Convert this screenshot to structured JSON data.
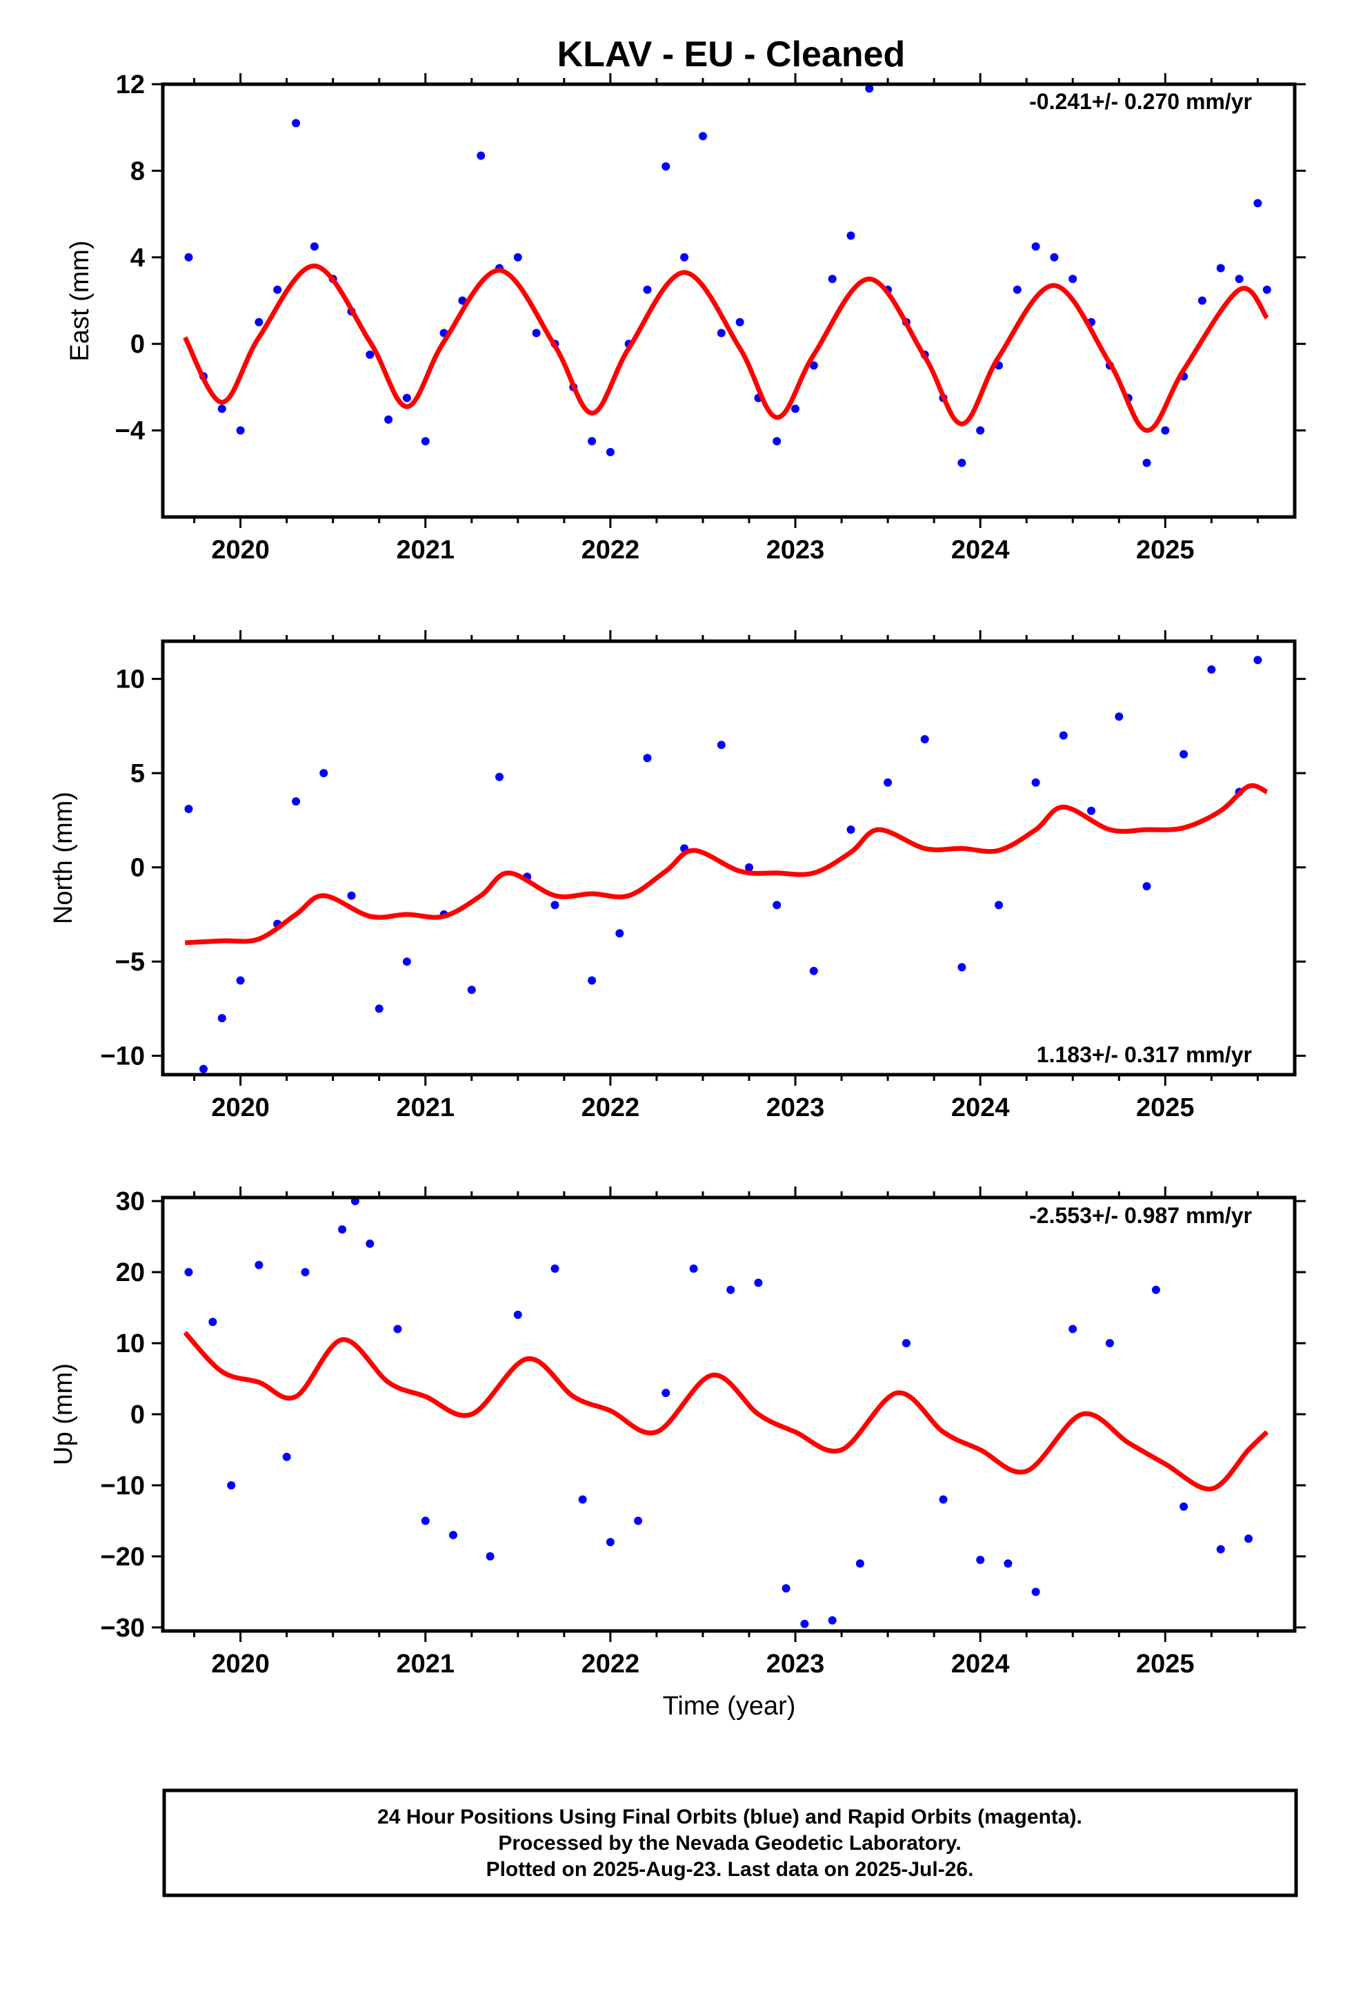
{
  "title": "KLAV  - EU - Cleaned",
  "xlabel": "Time (year)",
  "footer": [
    "24 Hour Positions Using Final Orbits (blue) and Rapid Orbits (magenta).",
    "Processed by the Nevada Geodetic Laboratory.",
    "Plotted on 2025-Aug-23. Last data on 2025-Jul-26."
  ],
  "colors": {
    "points": "#0000ff",
    "fit": "#ff0000",
    "frame": "#000000"
  },
  "chart_data": [
    {
      "type": "scatter",
      "component": "East",
      "ylabel": "East (mm)",
      "rate": "-0.241+/- 0.270 mm/yr",
      "xlim": [
        2019.58,
        2025.7
      ],
      "ylim": [
        -8,
        12
      ],
      "yticks": [
        -4,
        0,
        4,
        8,
        12
      ],
      "xticks": [
        2020,
        2021,
        2022,
        2023,
        2024,
        2025
      ],
      "grid": false,
      "series": [
        {
          "name": "",
          "kind": "fit",
          "x": [
            2019.7,
            2019.9,
            2020.1,
            2020.4,
            2020.7,
            2020.9,
            2021.1,
            2021.4,
            2021.7,
            2021.9,
            2022.1,
            2022.4,
            2022.7,
            2022.9,
            2023.1,
            2023.4,
            2023.7,
            2023.9,
            2024.1,
            2024.4,
            2024.7,
            2024.9,
            2025.1,
            2025.4,
            2025.55
          ],
          "y": [
            0.3,
            -2.7,
            0.3,
            3.6,
            0.1,
            -2.9,
            0.1,
            3.4,
            -0.1,
            -3.2,
            -0.2,
            3.3,
            -0.2,
            -3.4,
            -0.5,
            3.0,
            -0.6,
            -3.7,
            -0.6,
            2.7,
            -0.9,
            -4.0,
            -1.2,
            2.5,
            1.2
          ]
        },
        {
          "name": "",
          "kind": "points",
          "x": [
            2019.72,
            2019.8,
            2019.9,
            2020.0,
            2020.1,
            2020.2,
            2020.3,
            2020.4,
            2020.5,
            2020.6,
            2020.7,
            2020.8,
            2020.9,
            2021.0,
            2021.1,
            2021.2,
            2021.3,
            2021.4,
            2021.5,
            2021.6,
            2021.7,
            2021.8,
            2021.9,
            2022.0,
            2022.1,
            2022.2,
            2022.3,
            2022.4,
            2022.5,
            2022.6,
            2022.7,
            2022.8,
            2022.9,
            2023.0,
            2023.1,
            2023.2,
            2023.3,
            2023.4,
            2023.5,
            2023.6,
            2023.7,
            2023.8,
            2023.9,
            2024.0,
            2024.1,
            2024.2,
            2024.3,
            2024.4,
            2024.5,
            2024.6,
            2024.7,
            2024.8,
            2024.9,
            2025.0,
            2025.1,
            2025.2,
            2025.3,
            2025.4,
            2025.5,
            2025.55
          ],
          "y": [
            4.0,
            -1.5,
            -3.0,
            -4.0,
            1.0,
            2.5,
            10.2,
            4.5,
            3.0,
            1.5,
            -0.5,
            -3.5,
            -2.5,
            -4.5,
            0.5,
            2.0,
            8.7,
            3.5,
            4.0,
            0.5,
            0.0,
            -2.0,
            -4.5,
            -5.0,
            0.0,
            2.5,
            8.2,
            4.0,
            9.6,
            0.5,
            1.0,
            -2.5,
            -4.5,
            -3.0,
            -1.0,
            3.0,
            5.0,
            11.8,
            2.5,
            1.0,
            -0.5,
            -2.5,
            -5.5,
            -4.0,
            -1.0,
            2.5,
            4.5,
            4.0,
            3.0,
            1.0,
            -1.0,
            -2.5,
            -5.5,
            -4.0,
            -1.5,
            2.0,
            3.5,
            3.0,
            6.5,
            2.5
          ]
        }
      ]
    },
    {
      "type": "scatter",
      "component": "North",
      "ylabel": "North (mm)",
      "rate": "1.183+/- 0.317 mm/yr",
      "xlim": [
        2019.58,
        2025.7
      ],
      "ylim": [
        -11,
        12
      ],
      "yticks": [
        -10,
        -5,
        0,
        5,
        10
      ],
      "xticks": [
        2020,
        2021,
        2022,
        2023,
        2024,
        2025
      ],
      "grid": false,
      "series": [
        {
          "name": "",
          "kind": "fit",
          "x": [
            2019.7,
            2019.9,
            2020.1,
            2020.3,
            2020.45,
            2020.7,
            2020.9,
            2021.1,
            2021.3,
            2021.45,
            2021.7,
            2021.9,
            2022.1,
            2022.3,
            2022.45,
            2022.7,
            2022.9,
            2023.1,
            2023.3,
            2023.45,
            2023.7,
            2023.9,
            2024.1,
            2024.3,
            2024.45,
            2024.7,
            2024.9,
            2025.1,
            2025.3,
            2025.45,
            2025.55
          ],
          "y": [
            -4.0,
            -3.9,
            -3.8,
            -2.5,
            -1.5,
            -2.6,
            -2.5,
            -2.6,
            -1.5,
            -0.3,
            -1.5,
            -1.4,
            -1.5,
            -0.2,
            0.9,
            -0.2,
            -0.3,
            -0.3,
            0.8,
            2.0,
            1.0,
            1.0,
            0.9,
            2.0,
            3.2,
            2.0,
            2.0,
            2.1,
            3.0,
            4.3,
            4.0
          ]
        },
        {
          "name": "",
          "kind": "points",
          "x": [
            2019.72,
            2019.8,
            2019.9,
            2020.0,
            2020.2,
            2020.3,
            2020.45,
            2020.6,
            2020.75,
            2020.9,
            2021.1,
            2021.25,
            2021.4,
            2021.55,
            2021.7,
            2021.9,
            2022.05,
            2022.2,
            2022.4,
            2022.6,
            2022.75,
            2022.9,
            2023.1,
            2023.3,
            2023.5,
            2023.7,
            2023.9,
            2024.1,
            2024.3,
            2024.45,
            2024.6,
            2024.75,
            2024.9,
            2025.1,
            2025.25,
            2025.4,
            2025.5
          ],
          "y": [
            3.1,
            -10.7,
            -8.0,
            -6.0,
            -3.0,
            3.5,
            5.0,
            -1.5,
            -7.5,
            -5.0,
            -2.5,
            -6.5,
            4.8,
            -0.5,
            -2.0,
            -6.0,
            -3.5,
            5.8,
            1.0,
            6.5,
            0.0,
            -2.0,
            -5.5,
            2.0,
            4.5,
            6.8,
            -5.3,
            -2.0,
            4.5,
            7.0,
            3.0,
            8.0,
            -1.0,
            6.0,
            10.5,
            4.0,
            11.0
          ]
        }
      ]
    },
    {
      "type": "scatter",
      "component": "Up",
      "ylabel": "Up (mm)",
      "rate": "-2.553+/- 0.987 mm/yr",
      "xlim": [
        2019.58,
        2025.7
      ],
      "ylim": [
        -30.5,
        30.5
      ],
      "yticks": [
        -30,
        -20,
        -10,
        0,
        10,
        20,
        30
      ],
      "xticks": [
        2020,
        2021,
        2022,
        2023,
        2024,
        2025
      ],
      "grid": false,
      "series": [
        {
          "name": "",
          "kind": "fit",
          "x": [
            2019.7,
            2019.9,
            2020.1,
            2020.3,
            2020.55,
            2020.8,
            2021.0,
            2021.25,
            2021.55,
            2021.8,
            2022.0,
            2022.25,
            2022.55,
            2022.8,
            2023.0,
            2023.25,
            2023.55,
            2023.8,
            2024.0,
            2024.25,
            2024.55,
            2024.8,
            2025.0,
            2025.25,
            2025.45,
            2025.55
          ],
          "y": [
            11.5,
            6.0,
            4.5,
            2.5,
            10.5,
            4.5,
            2.5,
            0.0,
            7.8,
            2.5,
            0.5,
            -2.5,
            5.5,
            0.0,
            -2.5,
            -5.0,
            3.0,
            -2.5,
            -5.0,
            -8.0,
            0.0,
            -4.0,
            -7.0,
            -10.5,
            -5.0,
            -2.5
          ]
        },
        {
          "name": "",
          "kind": "points",
          "x": [
            2019.72,
            2019.85,
            2019.95,
            2020.1,
            2020.25,
            2020.35,
            2020.55,
            2020.62,
            2020.7,
            2020.85,
            2021.0,
            2021.15,
            2021.35,
            2021.5,
            2021.7,
            2021.85,
            2022.0,
            2022.15,
            2022.3,
            2022.45,
            2022.65,
            2022.8,
            2022.95,
            2023.05,
            2023.2,
            2023.35,
            2023.6,
            2023.8,
            2024.0,
            2024.15,
            2024.3,
            2024.5,
            2024.7,
            2024.95,
            2025.1,
            2025.3,
            2025.45
          ],
          "y": [
            20.0,
            13.0,
            -10.0,
            21.0,
            -6.0,
            20.0,
            26.0,
            30.0,
            24.0,
            12.0,
            -15.0,
            -17.0,
            -20.0,
            14.0,
            20.5,
            -12.0,
            -18.0,
            -15.0,
            3.0,
            20.5,
            17.5,
            18.5,
            -24.5,
            -29.5,
            -29.0,
            -21.0,
            10.0,
            -12.0,
            -20.5,
            -21.0,
            -25.0,
            12.0,
            10.0,
            17.5,
            -13.0,
            -19.0,
            -17.5
          ]
        }
      ]
    }
  ]
}
